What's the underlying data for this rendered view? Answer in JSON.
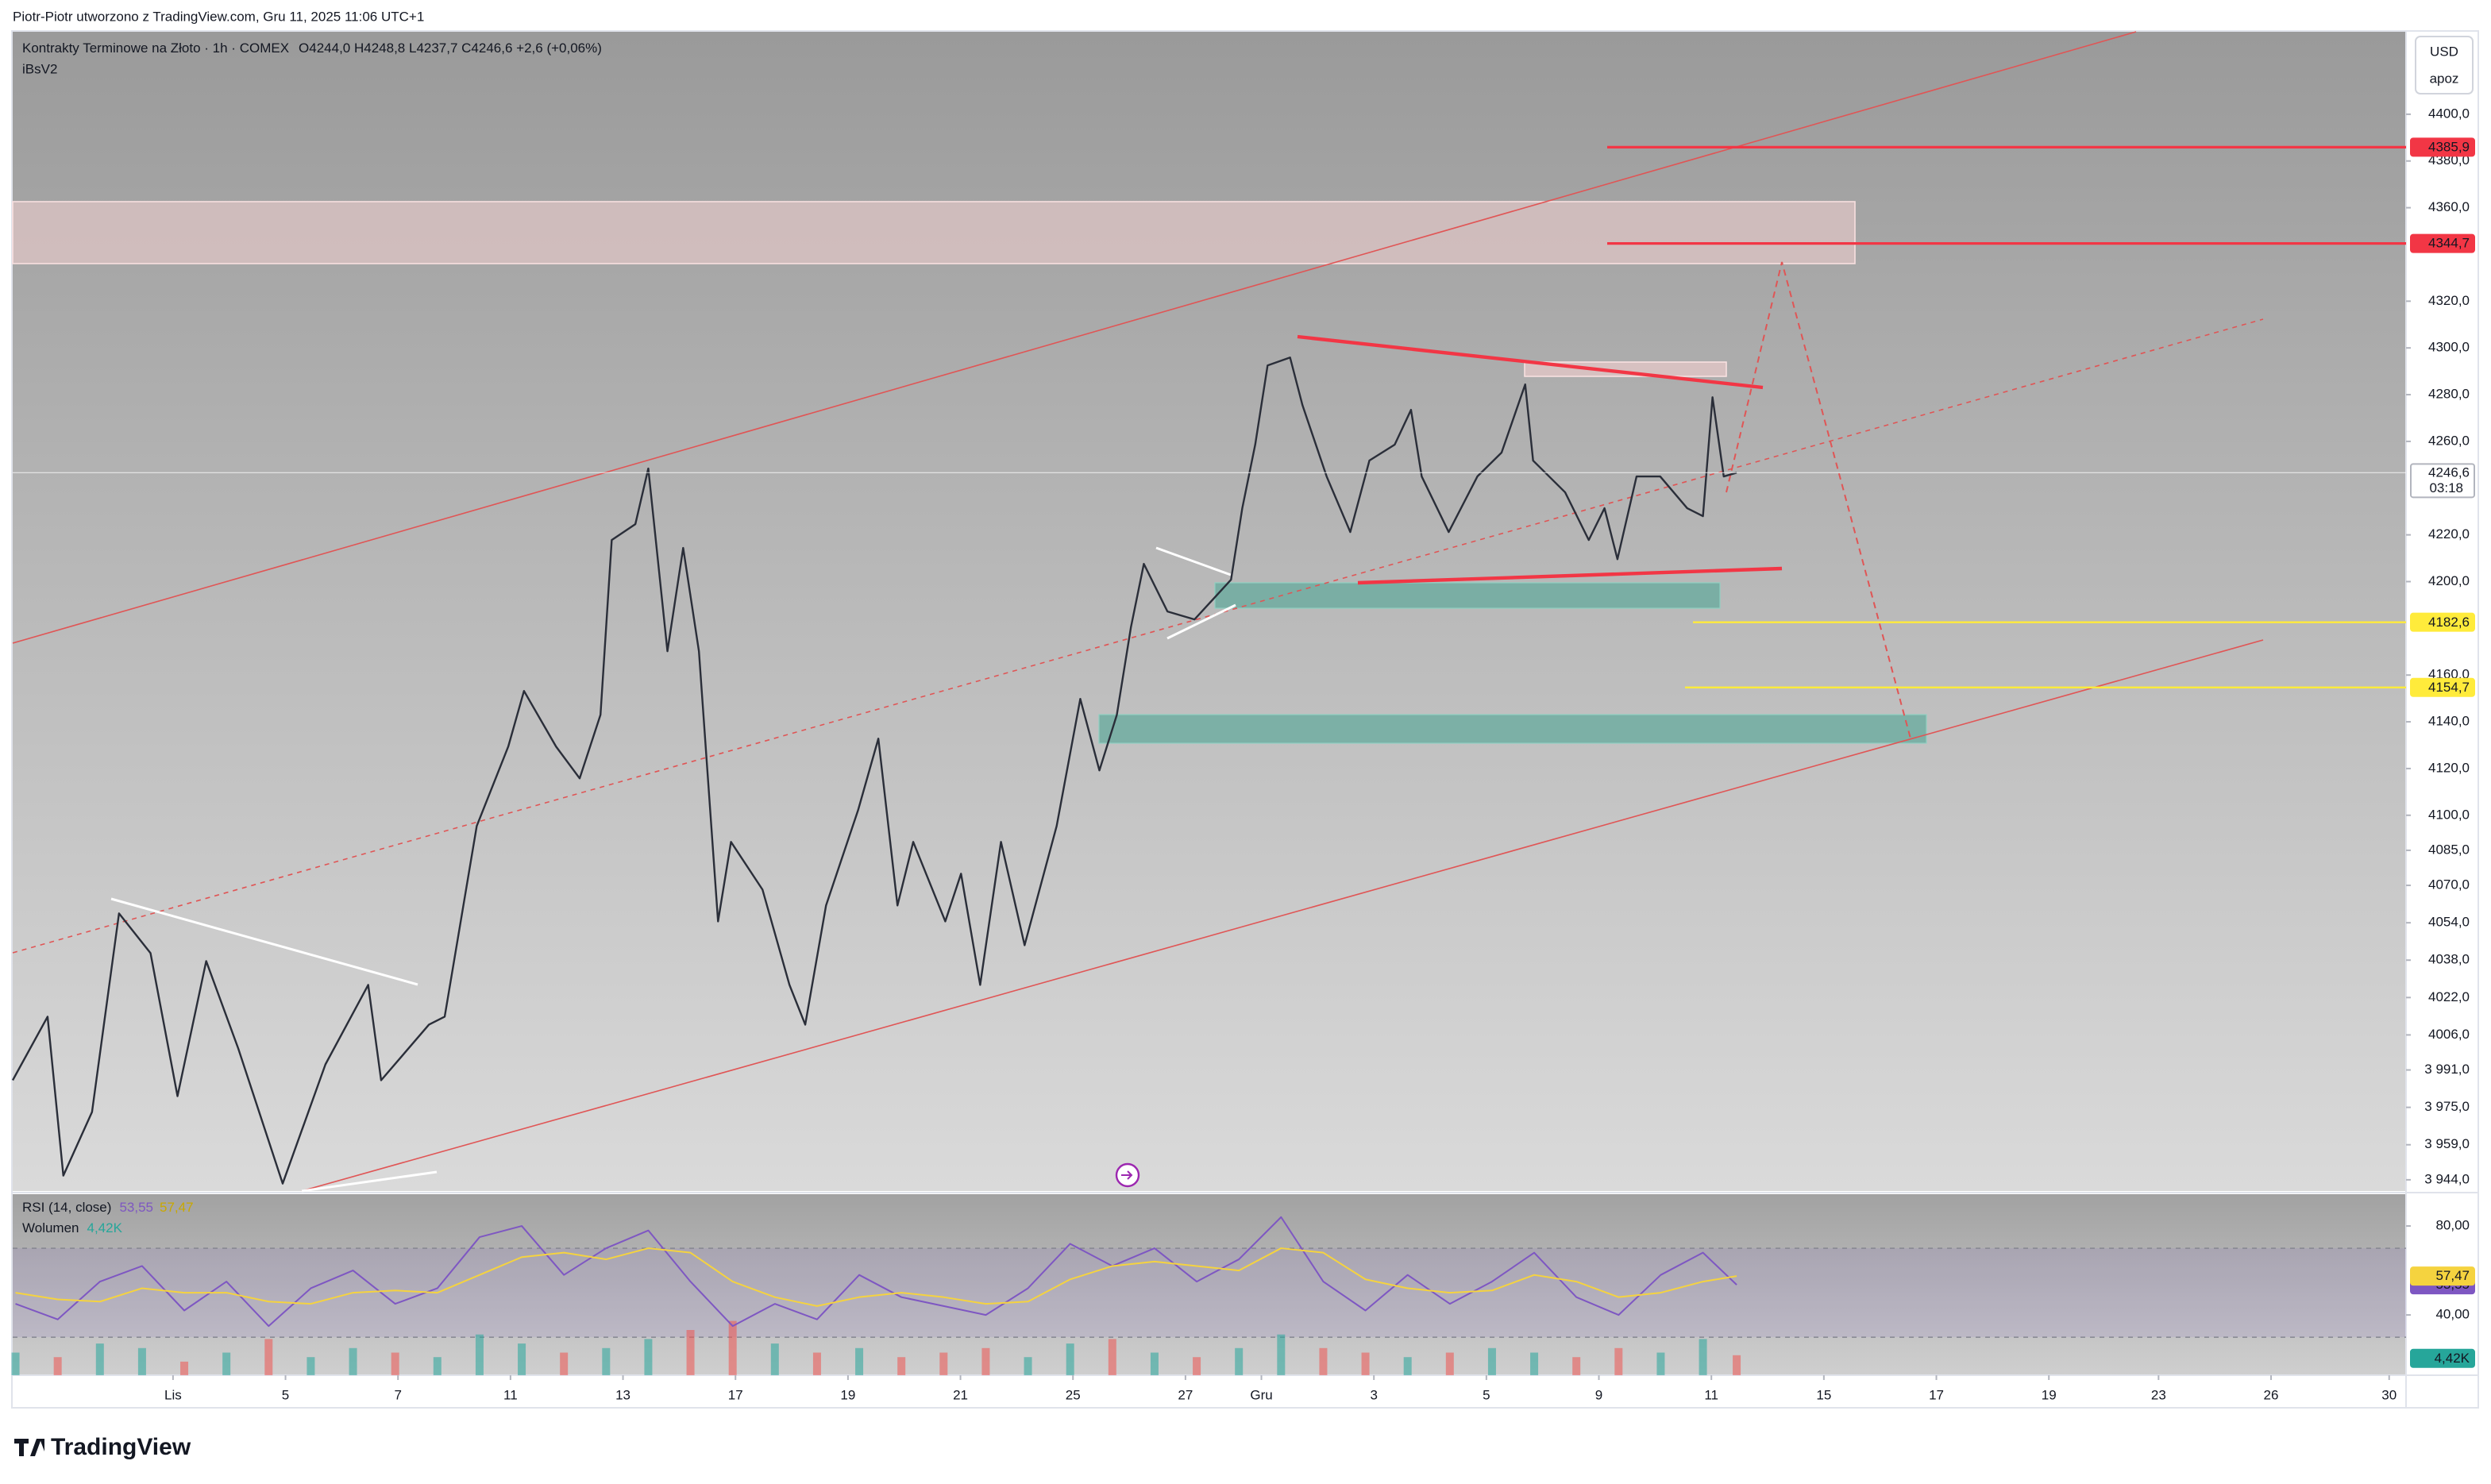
{
  "header": {
    "attribution": "Piotr-Piotr utworzono z TradingView.com, Gru 11, 2025 11:06 UTC+1",
    "logo": "TradingView",
    "currency": "USD",
    "scale_mode": "apoz"
  },
  "chart_data": [
    {
      "type": "line",
      "title": "Kontrakty Terminowe na Złoto · 1h · COMEX",
      "ohlc": "O4244,0  H4248,8  L4237,7  C4246,6  +2,6 (+0,06%)",
      "indicator": "iBsV2",
      "color": "#2a2e39",
      "x": [
        -2.85,
        -2.23,
        -1.95,
        -1.44,
        -0.96,
        -0.4,
        0.08,
        0.59,
        1.16,
        1.95,
        2.71,
        3.47,
        3.7,
        4.55,
        4.83,
        5.4,
        5.96,
        6.24,
        6.81,
        7.23,
        7.6,
        7.8,
        8.22,
        8.45,
        8.79,
        9.07,
        9.35,
        9.69,
        9.92,
        10.48,
        10.96,
        11.24,
        11.61,
        12.18,
        12.54,
        12.88,
        13.16,
        13.73,
        14.01,
        14.35,
        14.72,
        15.14,
        15.71,
        16.13,
        16.47,
        16.78,
        17.03,
        17.26,
        17.68,
        18.16,
        18.81,
        19.01,
        19.24,
        19.46,
        19.86,
        20.08,
        20.51,
        20.93,
        21.27,
        21.72,
        22.01,
        22.2,
        22.68,
        23.19,
        23.62,
        24.04,
        24.18,
        24.75,
        25.17,
        25.45,
        25.68,
        26.02,
        26.44,
        26.92,
        27.2,
        27.37,
        27.57,
        27.8
      ],
      "values": [
        3986.6,
        4013.8,
        3945.8,
        3973.0,
        4058.0,
        4041.0,
        3979.8,
        4037.6,
        4000.2,
        3942.4,
        3993.4,
        4027.4,
        3986.6,
        4010.4,
        4013.8,
        4095.4,
        4129.4,
        4153.2,
        4129.4,
        4115.8,
        4143.0,
        4217.8,
        4224.6,
        4248.4,
        4170.2,
        4214.4,
        4170.2,
        4054.6,
        4088.6,
        4068.2,
        4027.4,
        4010.4,
        4061.4,
        4102.2,
        4132.8,
        4061.4,
        4088.6,
        4054.6,
        4075.0,
        4027.4,
        4088.6,
        4044.4,
        4095.4,
        4149.8,
        4119.2,
        4143.0,
        4180.4,
        4207.6,
        4187.2,
        4183.8,
        4200.8,
        4231.4,
        4258.6,
        4292.5,
        4295.9,
        4275.5,
        4245.0,
        4221.2,
        4251.8,
        4258.6,
        4273.5,
        4245.0,
        4221.2,
        4245.0,
        4255.2,
        4284.4,
        4251.8,
        4238.2,
        4217.8,
        4231.4,
        4209.6,
        4245.0,
        4245.0,
        4231.4,
        4228.0,
        4278.9,
        4245.0,
        4246.6
      ],
      "xlim": [
        -2.85,
        39.7
      ],
      "xticks": [
        {
          "value": 0,
          "label": "Lis"
        },
        {
          "value": 2,
          "label": "5"
        },
        {
          "value": 4,
          "label": "7"
        },
        {
          "value": 6,
          "label": "11"
        },
        {
          "value": 8,
          "label": "13"
        },
        {
          "value": 10,
          "label": "17"
        },
        {
          "value": 12,
          "label": "19"
        },
        {
          "value": 14,
          "label": "21"
        },
        {
          "value": 16,
          "label": "25"
        },
        {
          "value": 18,
          "label": "27"
        },
        {
          "value": 19.35,
          "label": "Gru"
        },
        {
          "value": 21.35,
          "label": "3"
        },
        {
          "value": 23.35,
          "label": "5"
        },
        {
          "value": 25.35,
          "label": "9"
        },
        {
          "value": 27.35,
          "label": "11"
        },
        {
          "value": 29.35,
          "label": "15"
        },
        {
          "value": 31.35,
          "label": "17"
        },
        {
          "value": 33.35,
          "label": "19"
        },
        {
          "value": 35.3,
          "label": "23"
        },
        {
          "value": 37.3,
          "label": "26"
        },
        {
          "value": 39.4,
          "label": "30"
        }
      ],
      "ylim": [
        3939.2,
        4435.3
      ],
      "yticks": [
        {
          "value": 4400,
          "label": "4400,0"
        },
        {
          "value": 4380,
          "label": "4380,0"
        },
        {
          "value": 4360,
          "label": "4360,0"
        },
        {
          "value": 4320,
          "label": "4320,0"
        },
        {
          "value": 4300,
          "label": "4300,0"
        },
        {
          "value": 4280,
          "label": "4280,0"
        },
        {
          "value": 4260,
          "label": "4260,0"
        },
        {
          "value": 4220,
          "label": "4220,0"
        },
        {
          "value": 4200,
          "label": "4200,0"
        },
        {
          "value": 4160,
          "label": "4160,0"
        },
        {
          "value": 4140,
          "label": "4140,0"
        },
        {
          "value": 4120,
          "label": "4120,0"
        },
        {
          "value": 4100,
          "label": "4100,0"
        },
        {
          "value": 4085,
          "label": "4085,0"
        },
        {
          "value": 4070,
          "label": "4070,0"
        },
        {
          "value": 4054,
          "label": "4054,0"
        },
        {
          "value": 4038,
          "label": "4038,0"
        },
        {
          "value": 4022,
          "label": "4022,0"
        },
        {
          "value": 4006,
          "label": "4006,0"
        },
        {
          "value": 3991,
          "label": "3 991,0"
        },
        {
          "value": 3975,
          "label": "3 975,0"
        },
        {
          "value": 3959,
          "label": "3 959,0"
        },
        {
          "value": 3944,
          "label": "3 944,0"
        }
      ],
      "price_levels": [
        {
          "value": 4385.9,
          "label": "4385,9",
          "color": "#f23645"
        },
        {
          "value": 4344.7,
          "label": "4344,7",
          "color": "#f23645"
        },
        {
          "value": 4182.6,
          "label": "4182,6",
          "color": "#ffeb3b"
        },
        {
          "value": 4154.7,
          "label": "4154,7",
          "color": "#ffeb3b"
        }
      ],
      "last_price": {
        "value": 4246.6,
        "label": "4246,6",
        "countdown": "03:18"
      }
    },
    {
      "type": "line",
      "title": "RSI (14, close)",
      "x": [
        -2.8,
        -2.05,
        -1.3,
        -0.55,
        0.2,
        0.95,
        1.7,
        2.45,
        3.2,
        3.95,
        4.7,
        5.45,
        6.2,
        6.95,
        7.7,
        8.45,
        9.2,
        9.95,
        10.7,
        11.45,
        12.2,
        12.95,
        13.7,
        14.45,
        15.2,
        15.95,
        16.7,
        17.45,
        18.2,
        18.95,
        19.7,
        20.45,
        21.2,
        21.95,
        22.7,
        23.45,
        24.2,
        24.95,
        25.7,
        26.45,
        27.2,
        27.8
      ],
      "series": [
        {
          "color": "#7e57c2",
          "values": [
            45,
            38,
            55,
            62,
            42,
            55,
            35,
            52,
            60,
            45,
            52,
            75,
            80,
            58,
            70,
            78,
            55,
            35,
            45,
            38,
            58,
            48,
            44,
            40,
            52,
            72,
            62,
            70,
            55,
            65,
            84,
            55,
            42,
            58,
            45,
            55,
            68,
            48,
            40,
            58,
            68,
            53.55
          ],
          "last_label": "53,55"
        },
        {
          "color": "#f5d33f",
          "values": [
            50,
            47,
            46,
            52,
            50,
            50,
            46,
            45,
            50,
            51,
            50,
            58,
            66,
            68,
            65,
            70,
            68,
            55,
            48,
            44,
            48,
            50,
            48,
            45,
            46,
            56,
            62,
            64,
            62,
            60,
            70,
            68,
            56,
            52,
            50,
            51,
            58,
            55,
            48,
            50,
            55,
            57.47
          ],
          "last_label": "57,47"
        }
      ],
      "ylim": [
        12.9,
        94.3
      ],
      "yticks": [
        {
          "value": 80,
          "label": "80,00"
        },
        {
          "value": 40,
          "label": "40,00"
        }
      ],
      "bands": [
        70,
        30
      ],
      "volume": {
        "title": "Wolumen",
        "color": "#26a69a",
        "down_color": "#ef5350",
        "values": [
          5,
          4,
          7,
          6,
          3,
          5,
          8,
          4,
          6,
          5,
          4,
          9,
          7,
          5,
          6,
          8,
          10,
          12,
          7,
          5,
          6,
          4,
          5,
          6,
          4,
          7,
          8,
          5,
          4,
          6,
          9,
          6,
          5,
          4,
          5,
          6,
          5,
          4,
          6,
          5,
          8,
          4.42
        ],
        "last_label": "4,42K",
        "ylim": [
          0,
          40
        ]
      }
    }
  ]
}
